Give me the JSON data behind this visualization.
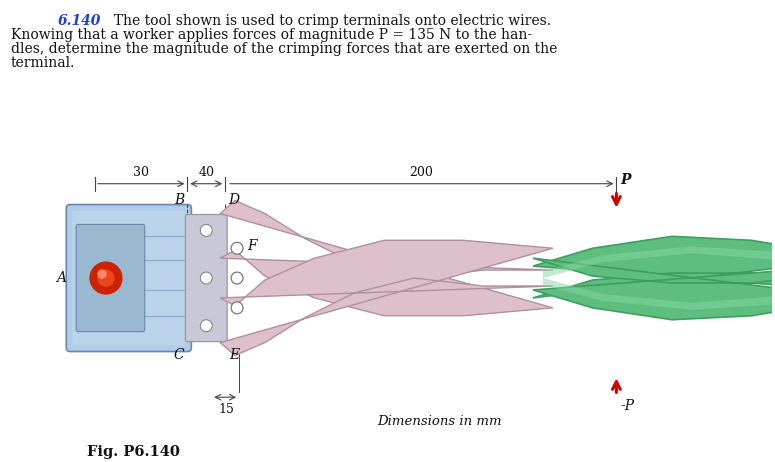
{
  "title_num": "6.140",
  "title_text": "  The tool shown is used to crimp terminals onto electric wires.",
  "body_text_line2": "Knowing that a worker applies forces of magnitude P = 135 N to the han-",
  "body_text_line3": "dles, determine the magnitude of the crimping forces that are exerted on the",
  "body_text_line4": "terminal.",
  "fig_label": "Fig. P6.140",
  "dim_label": "Dimensions in mm",
  "dim_30": "30",
  "dim_40": "40",
  "dim_200": "200",
  "dim_15": "15",
  "label_A": "A",
  "label_B": "B",
  "label_C": "C",
  "label_D": "D",
  "label_E": "E",
  "label_F": "F",
  "label_P_top": "P",
  "label_P_bot": "-P",
  "bg_color": "#ffffff",
  "blue_body_color": "#b0cce8",
  "blue_body_dark": "#7aaac8",
  "pink_jaw_color": "#ddc0cc",
  "pink_jaw_light": "#eedde5",
  "green_handle_color": "#5dbe80",
  "green_handle_dark": "#3d9e60",
  "green_handle_light": "#85d8a0",
  "red_terminal": "#cc2200",
  "grey_plate": "#c8c8d8",
  "arrow_color": "#cc0000",
  "dim_line_color": "#444444",
  "text_color": "#111111",
  "title_num_color": "#2244bb"
}
